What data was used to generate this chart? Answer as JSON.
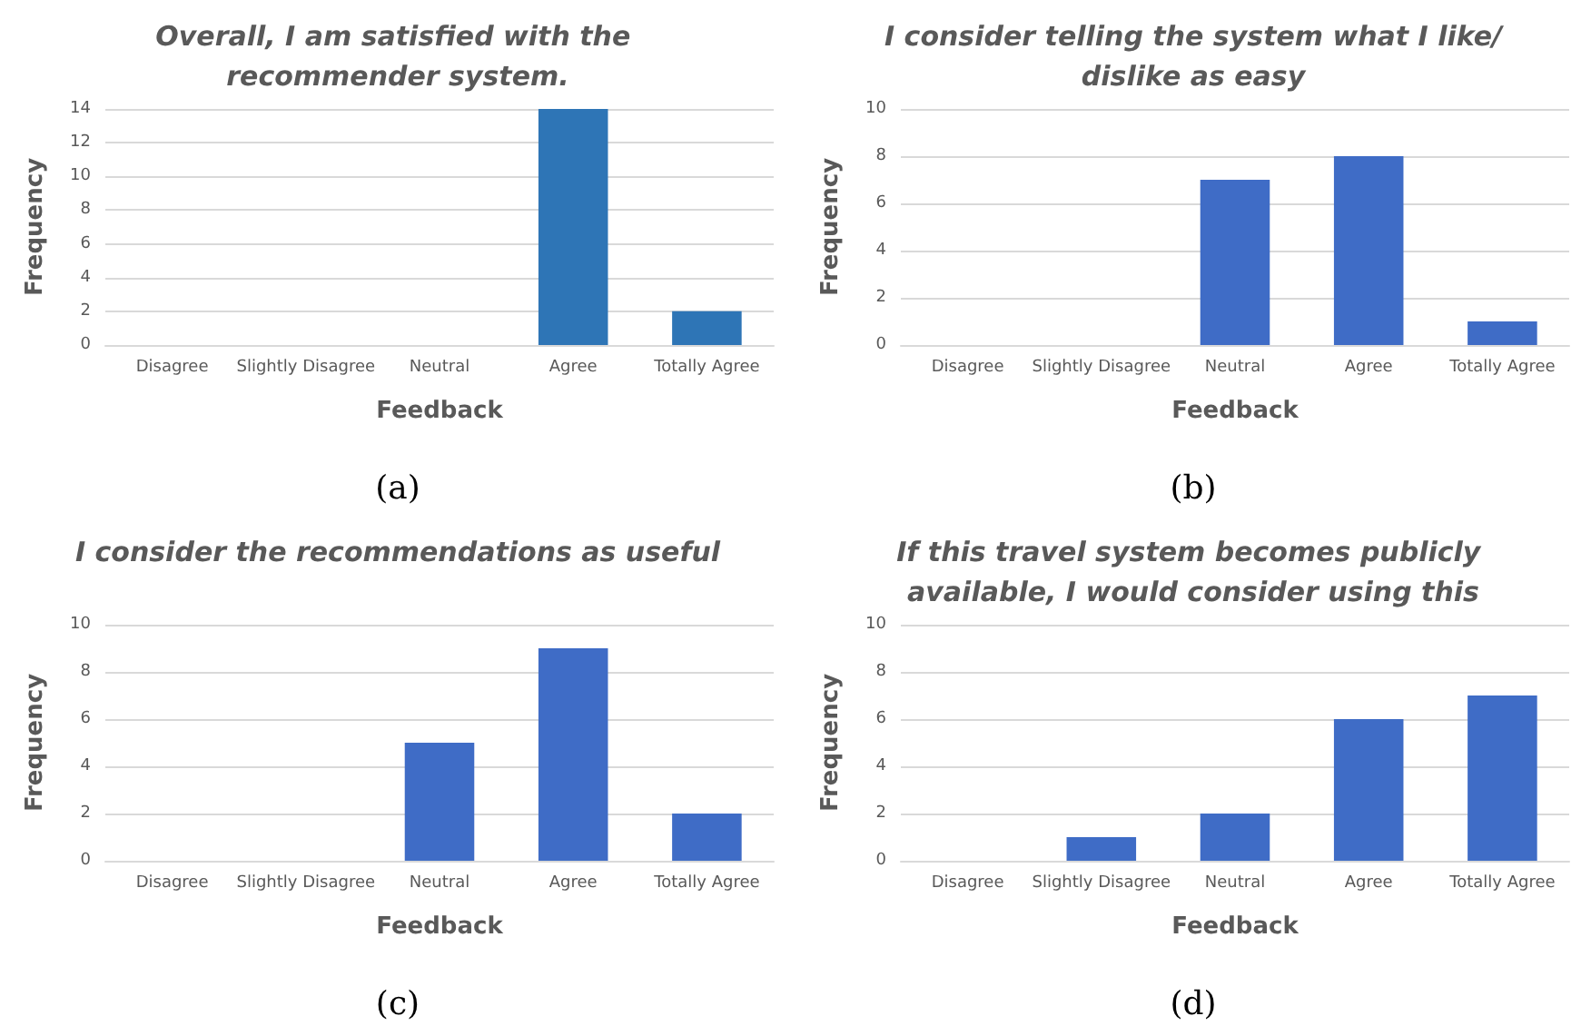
{
  "chart_data": [
    {
      "type": "bar",
      "title": "Overall, I am satisfied with the recommender system.",
      "xlabel": "Feedback",
      "ylabel": "Frequency",
      "categories": [
        "Disagree",
        "Slightly Disagree",
        "Neutral",
        "Agree",
        "Totally Agree"
      ],
      "values": [
        0,
        0,
        0,
        14,
        2
      ],
      "color": "#2e75b6",
      "ylim": [
        0,
        14
      ],
      "yticks": [
        0,
        2,
        4,
        6,
        8,
        10,
        12,
        14
      ],
      "grid": "y",
      "annotations": [
        "(a)"
      ]
    },
    {
      "type": "bar",
      "title": "I consider telling the system what I like/dislike as easy",
      "xlabel": "Feedback",
      "ylabel": "Frequency",
      "categories": [
        "Disagree",
        "Slightly Disagree",
        "Neutral",
        "Agree",
        "Totally Agree"
      ],
      "values": [
        0,
        0,
        7,
        8,
        1
      ],
      "color": "#3f6cc6",
      "ylim": [
        0,
        10
      ],
      "yticks": [
        0,
        2,
        4,
        6,
        8,
        10
      ],
      "grid": "y",
      "annotations": [
        "(b)"
      ]
    },
    {
      "type": "bar",
      "title": "I consider the recommendations as useful",
      "xlabel": "Feedback",
      "ylabel": "Frequency",
      "categories": [
        "Disagree",
        "Slightly Disagree",
        "Neutral",
        "Agree",
        "Totally Agree"
      ],
      "values": [
        0,
        0,
        5,
        9,
        2
      ],
      "color": "#3f6cc6",
      "ylim": [
        0,
        10
      ],
      "yticks": [
        0,
        2,
        4,
        6,
        8,
        10
      ],
      "grid": "y",
      "annotations": [
        "(c)"
      ]
    },
    {
      "type": "bar",
      "title": "If this travel system becomes publicly available, I would consider using this",
      "xlabel": "Feedback",
      "ylabel": "Frequency",
      "categories": [
        "Disagree",
        "Slightly Disagree",
        "Neutral",
        "Agree",
        "Totally Agree"
      ],
      "values": [
        0,
        1,
        2,
        6,
        7
      ],
      "color": "#3f6cc6",
      "ylim": [
        0,
        10
      ],
      "yticks": [
        0,
        2,
        4,
        6,
        8,
        10
      ],
      "grid": "y",
      "annotations": [
        "(d)"
      ]
    }
  ]
}
